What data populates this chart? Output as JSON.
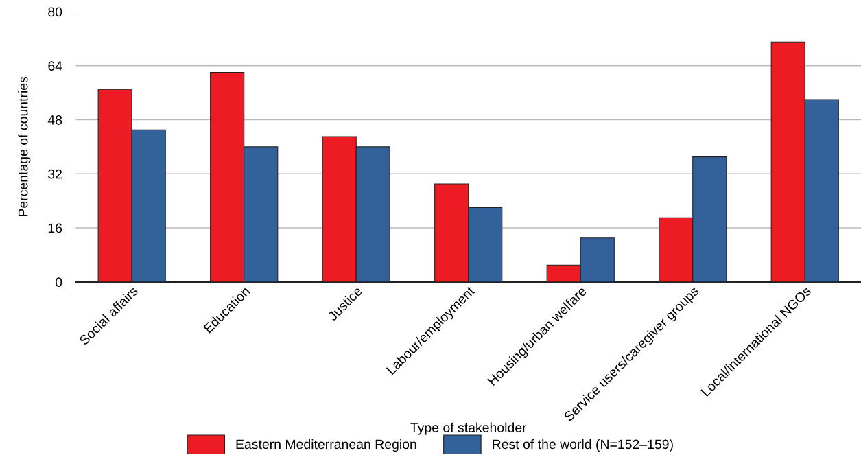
{
  "chart_data": {
    "type": "bar",
    "xlabel": "Type of stakeholder",
    "ylabel": "Percentage of countries",
    "categories": [
      "Social affairs",
      "Education",
      "Justice",
      "Labour/employment",
      "Housing/urban welfare",
      "Service users/caregiver groups",
      "Local/international NGOs"
    ],
    "series": [
      {
        "name": "Eastern Mediterranean Region",
        "color": "#ed1c24",
        "values": [
          57,
          62,
          43,
          29,
          5,
          19,
          71
        ]
      },
      {
        "name": "Rest of the world (N=152–159)",
        "color": "#336199",
        "values": [
          45,
          40,
          40,
          22,
          13,
          37,
          54
        ]
      }
    ],
    "ylim": [
      0,
      80
    ],
    "yticks": [
      0,
      16,
      32,
      48,
      64,
      80
    ],
    "grid": "y",
    "legend": "bottom"
  }
}
